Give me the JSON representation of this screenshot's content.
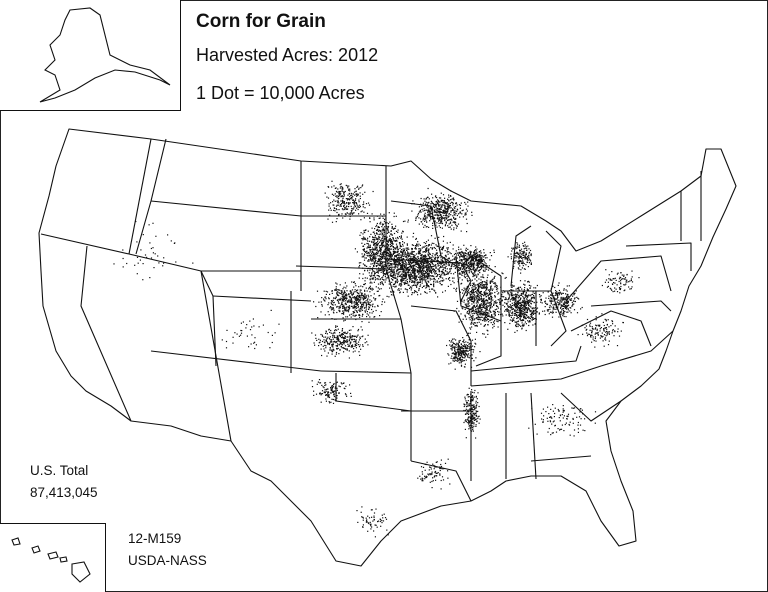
{
  "map": {
    "title": "Corn for Grain",
    "subtitle": "Harvested Acres: 2012",
    "dot_scale": "1 Dot = 10,000 Acres",
    "total_label": "U.S. Total",
    "total_value": "87,413,045",
    "map_code": "12-M159",
    "source": "USDA-NASS",
    "dot_value_acres": 10000,
    "total_acres": 87413045,
    "approx_dot_count": 8741
  },
  "colors": {
    "dots": "#111111",
    "borders": "#111111",
    "background": "#ffffff"
  }
}
